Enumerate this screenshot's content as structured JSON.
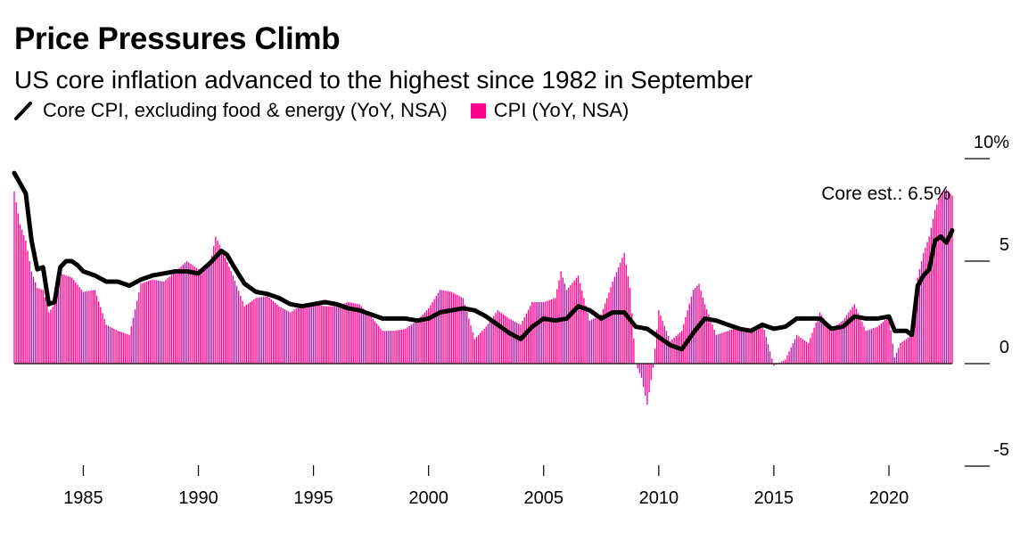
{
  "chart_data": {
    "type": "bar",
    "title": "Price Pressures Climb",
    "subtitle": "US core inflation advanced to the highest since 1982 in September",
    "xlabel": "",
    "ylabel": "",
    "ylim": [
      -5,
      10
    ],
    "y_ticks": [
      {
        "value": 10,
        "label": "10%"
      },
      {
        "value": 5,
        "label": "5"
      },
      {
        "value": 0,
        "label": "0"
      },
      {
        "value": -5,
        "label": "-5"
      }
    ],
    "x_ticks": [
      "1985",
      "1990",
      "1995",
      "2000",
      "2005",
      "2010",
      "2015",
      "2020"
    ],
    "x_range": [
      1982.0,
      2022.75
    ],
    "annotation": "Core est.: 6.5%",
    "colors": {
      "cpi": "#ff0090",
      "core": "#000000",
      "zero_line": "#000000"
    },
    "series": [
      {
        "name": "Core CPI, excluding food & energy (YoY, NSA)",
        "type": "line",
        "x": [
          1982.0,
          1982.25,
          1982.5,
          1982.75,
          1983.0,
          1983.25,
          1983.5,
          1983.75,
          1984.0,
          1984.25,
          1984.5,
          1984.75,
          1985.0,
          1985.5,
          1986.0,
          1986.5,
          1987.0,
          1987.5,
          1988.0,
          1988.5,
          1989.0,
          1989.5,
          1990.0,
          1990.5,
          1991.0,
          1991.25,
          1991.5,
          1992.0,
          1992.5,
          1993.0,
          1993.5,
          1994.0,
          1994.5,
          1995.0,
          1995.5,
          1996.0,
          1996.5,
          1997.0,
          1997.5,
          1998.0,
          1998.5,
          1999.0,
          1999.5,
          2000.0,
          2000.5,
          2001.0,
          2001.5,
          2002.0,
          2002.5,
          2003.0,
          2003.5,
          2004.0,
          2004.5,
          2005.0,
          2005.5,
          2006.0,
          2006.5,
          2007.0,
          2007.5,
          2008.0,
          2008.5,
          2009.0,
          2009.5,
          2010.0,
          2010.5,
          2011.0,
          2011.5,
          2012.0,
          2012.5,
          2013.0,
          2013.5,
          2014.0,
          2014.5,
          2015.0,
          2015.5,
          2016.0,
          2016.5,
          2017.0,
          2017.5,
          2018.0,
          2018.5,
          2019.0,
          2019.5,
          2020.0,
          2020.25,
          2020.5,
          2020.75,
          2021.0,
          2021.25,
          2021.5,
          2021.75,
          2022.0,
          2022.25,
          2022.5,
          2022.75
        ],
        "values": [
          9.3,
          8.8,
          8.3,
          6.0,
          4.6,
          4.7,
          2.9,
          3.0,
          4.7,
          5.0,
          5.0,
          4.8,
          4.5,
          4.3,
          4.0,
          4.0,
          3.8,
          4.1,
          4.3,
          4.4,
          4.5,
          4.5,
          4.4,
          4.9,
          5.5,
          5.3,
          4.8,
          3.9,
          3.5,
          3.4,
          3.2,
          2.9,
          2.8,
          2.9,
          3.0,
          2.9,
          2.7,
          2.6,
          2.4,
          2.2,
          2.2,
          2.2,
          2.1,
          2.2,
          2.5,
          2.6,
          2.7,
          2.6,
          2.3,
          1.9,
          1.5,
          1.2,
          1.8,
          2.2,
          2.1,
          2.2,
          2.8,
          2.6,
          2.2,
          2.5,
          2.5,
          1.8,
          1.7,
          1.3,
          0.9,
          0.7,
          1.5,
          2.2,
          2.1,
          1.9,
          1.7,
          1.6,
          1.9,
          1.7,
          1.8,
          2.2,
          2.2,
          2.2,
          1.7,
          1.8,
          2.3,
          2.2,
          2.2,
          2.3,
          1.6,
          1.6,
          1.6,
          1.4,
          3.8,
          4.3,
          4.6,
          6.0,
          6.2,
          5.9,
          6.5
        ]
      },
      {
        "name": "CPI (YoY, NSA)",
        "type": "bar",
        "x": [
          1982.0,
          1982.25,
          1982.5,
          1982.75,
          1983.0,
          1983.25,
          1983.5,
          1983.75,
          1984.0,
          1984.5,
          1985.0,
          1985.5,
          1986.0,
          1986.5,
          1987.0,
          1987.5,
          1988.0,
          1988.5,
          1989.0,
          1989.5,
          1990.0,
          1990.5,
          1990.75,
          1991.0,
          1991.5,
          1992.0,
          1992.5,
          1993.0,
          1993.5,
          1994.0,
          1994.5,
          1995.0,
          1995.5,
          1996.0,
          1996.5,
          1997.0,
          1997.5,
          1998.0,
          1998.5,
          1999.0,
          1999.5,
          2000.0,
          2000.5,
          2001.0,
          2001.5,
          2002.0,
          2002.5,
          2003.0,
          2003.5,
          2004.0,
          2004.5,
          2005.0,
          2005.5,
          2005.75,
          2006.0,
          2006.5,
          2007.0,
          2007.5,
          2008.0,
          2008.5,
          2008.75,
          2009.0,
          2009.25,
          2009.5,
          2009.75,
          2010.0,
          2010.5,
          2011.0,
          2011.5,
          2011.75,
          2012.0,
          2012.5,
          2013.0,
          2013.5,
          2014.0,
          2014.5,
          2015.0,
          2015.5,
          2016.0,
          2016.5,
          2017.0,
          2017.5,
          2018.0,
          2018.5,
          2019.0,
          2019.5,
          2020.0,
          2020.25,
          2020.5,
          2020.75,
          2021.0,
          2021.25,
          2021.5,
          2021.75,
          2022.0,
          2022.25,
          2022.5,
          2022.75
        ],
        "values": [
          8.4,
          6.8,
          6.0,
          4.5,
          3.7,
          3.6,
          2.5,
          2.9,
          4.4,
          4.2,
          3.5,
          3.6,
          1.9,
          1.6,
          1.4,
          3.9,
          4.1,
          4.0,
          4.5,
          5.0,
          4.6,
          4.8,
          6.2,
          5.6,
          4.3,
          2.8,
          3.2,
          3.3,
          2.8,
          2.5,
          2.9,
          2.9,
          2.8,
          2.8,
          3.0,
          2.9,
          2.3,
          1.6,
          1.6,
          1.7,
          2.1,
          2.7,
          3.6,
          3.5,
          3.2,
          1.2,
          1.8,
          2.6,
          2.2,
          1.9,
          3.0,
          3.0,
          3.2,
          4.5,
          3.6,
          4.3,
          2.1,
          2.4,
          4.0,
          5.4,
          3.7,
          0.0,
          -0.7,
          -2.0,
          -0.2,
          2.6,
          1.1,
          1.6,
          3.6,
          3.9,
          2.9,
          1.4,
          1.6,
          1.8,
          1.6,
          2.0,
          -0.1,
          0.2,
          1.4,
          1.0,
          2.5,
          1.7,
          2.1,
          2.9,
          1.6,
          1.8,
          2.3,
          0.3,
          1.0,
          1.2,
          1.4,
          4.2,
          5.4,
          6.2,
          7.5,
          8.3,
          8.5,
          8.2
        ]
      }
    ]
  }
}
